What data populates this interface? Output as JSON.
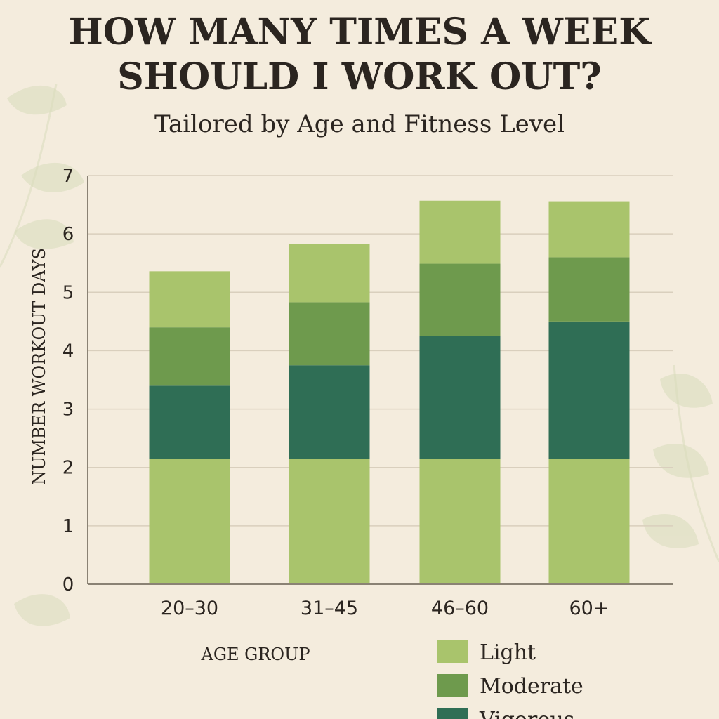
{
  "chart_data": {
    "type": "bar",
    "stacked": true,
    "title": "HOW MANY TIMES A WEEK SHOULD I WORK OUT?",
    "subtitle": "Tailored by Age and Fitness Level",
    "xlabel": "AGE GROUP",
    "ylabel": "NUMBER WORKOUT DAYS",
    "ylim": [
      0,
      7
    ],
    "yticks": [
      0,
      1,
      2,
      3,
      4,
      5,
      6,
      7
    ],
    "grid": true,
    "legend_position": "bottom-right",
    "categories": [
      "20–30",
      "31–45",
      "46–60",
      "60+"
    ],
    "segments": [
      {
        "key": "base",
        "color": "#a9c46c",
        "values": [
          2.15,
          2.15,
          2.15,
          2.15
        ]
      },
      {
        "key": "vigorous",
        "color": "#2f6e55",
        "values": [
          1.25,
          1.6,
          2.1,
          2.35
        ]
      },
      {
        "key": "moderate",
        "color": "#6e9a4d",
        "values": [
          1.0,
          1.08,
          1.24,
          1.1
        ]
      },
      {
        "key": "light",
        "color": "#a9c46c",
        "values": [
          0.96,
          1.0,
          1.08,
          0.96
        ]
      }
    ],
    "legend": [
      {
        "label": "Light",
        "color": "#a9c46c"
      },
      {
        "label": "Moderate",
        "color": "#6e9a4d"
      },
      {
        "label": "Vigorous",
        "color": "#2f6e55"
      }
    ]
  }
}
